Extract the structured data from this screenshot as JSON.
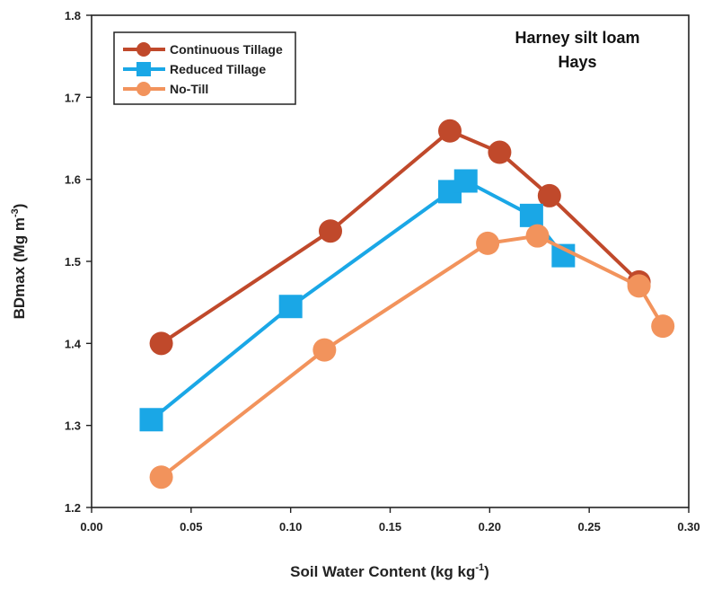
{
  "chart_data": {
    "type": "line",
    "title": "",
    "annotation": [
      "Harney silt loam",
      "Hays"
    ],
    "xlabel": "Soil Water Content (kg kg",
    "xlabel_sup": "-1",
    "xlabel_end": ")",
    "ylabel": "BDmax (Mg m",
    "ylabel_sup": "-3",
    "ylabel_end": ")",
    "xlim": [
      0.0,
      0.3
    ],
    "ylim": [
      1.2,
      1.8
    ],
    "x_ticks": [
      0.0,
      0.05,
      0.1,
      0.15,
      0.2,
      0.25,
      0.3
    ],
    "x_tick_labels": [
      "0.00",
      "0.05",
      "0.10",
      "0.15",
      "0.20",
      "0.25",
      "0.30"
    ],
    "y_ticks": [
      1.2,
      1.3,
      1.4,
      1.5,
      1.6,
      1.7,
      1.8
    ],
    "y_tick_labels": [
      "1.2",
      "1.3",
      "1.4",
      "1.5",
      "1.6",
      "1.7",
      "1.8"
    ],
    "grid": false,
    "legend_position": "top-left",
    "series": [
      {
        "name": "Continuous Tillage",
        "color": "#c0492b",
        "marker": "circle",
        "points": [
          [
            0.035,
            1.4
          ],
          [
            0.12,
            1.537
          ],
          [
            0.18,
            1.659
          ],
          [
            0.205,
            1.633
          ],
          [
            0.23,
            1.58
          ],
          [
            0.275,
            1.475
          ]
        ]
      },
      {
        "name": "Reduced Tillage",
        "color": "#1aa7e6",
        "marker": "square",
        "points": [
          [
            0.03,
            1.307
          ],
          [
            0.1,
            1.445
          ],
          [
            0.18,
            1.585
          ],
          [
            0.188,
            1.598
          ],
          [
            0.221,
            1.556
          ],
          [
            0.237,
            1.507
          ]
        ]
      },
      {
        "name": "No-Till",
        "color": "#f2935c",
        "marker": "circle",
        "points": [
          [
            0.035,
            1.237
          ],
          [
            0.117,
            1.392
          ],
          [
            0.199,
            1.522
          ],
          [
            0.224,
            1.531
          ],
          [
            0.275,
            1.47
          ],
          [
            0.287,
            1.421
          ]
        ]
      }
    ]
  }
}
